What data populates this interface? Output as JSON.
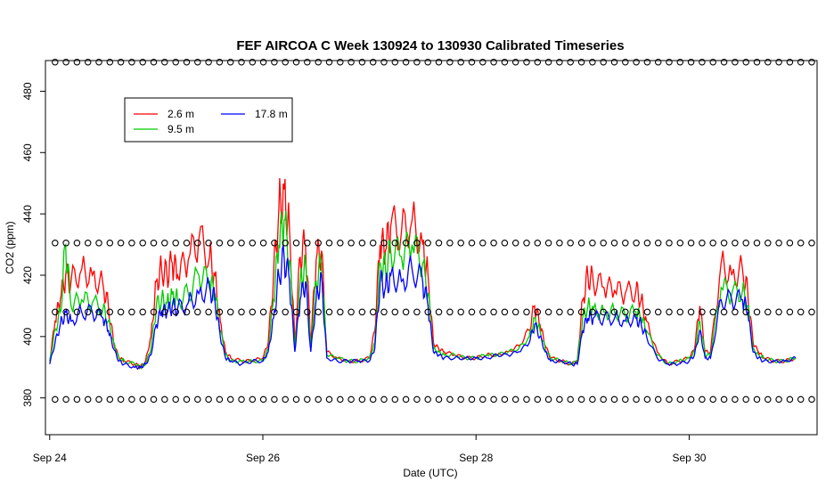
{
  "chart_data": {
    "type": "line",
    "title": "FEF AIRCOA C  Week 130924 to 130930  Calibrated Timeseries",
    "xlabel": "Date (UTC)",
    "ylabel": "CO2 (ppm)",
    "x_unit": "days",
    "xlim": [
      23.96,
      31.2
    ],
    "ylim": [
      368,
      490
    ],
    "x_ticks": [
      {
        "value": 24,
        "label": "Sep 24"
      },
      {
        "value": 26,
        "label": "Sep 26"
      },
      {
        "value": 28,
        "label": "Sep 28"
      },
      {
        "value": 30,
        "label": "Sep 30"
      }
    ],
    "y_ticks": [
      {
        "value": 380,
        "label": "380"
      },
      {
        "value": 400,
        "label": "400"
      },
      {
        "value": 420,
        "label": "420"
      },
      {
        "value": 440,
        "label": "440"
      },
      {
        "value": 460,
        "label": "460"
      },
      {
        "value": 480,
        "label": "480"
      }
    ],
    "legend_position": "top-left",
    "series": [
      {
        "name": "2.6 m",
        "color": "#ff0000",
        "x": [
          24.0,
          24.05,
          24.1,
          24.15,
          24.2,
          24.3,
          24.4,
          24.5,
          24.55,
          24.6,
          24.65,
          24.7,
          24.8,
          24.85,
          24.9,
          24.95,
          25.0,
          25.05,
          25.1,
          25.15,
          25.2,
          25.3,
          25.4,
          25.5,
          25.55,
          25.6,
          25.65,
          25.7,
          25.8,
          25.9,
          26.0,
          26.05,
          26.1,
          26.15,
          26.2,
          26.25,
          26.3,
          26.35,
          26.4,
          26.45,
          26.5,
          26.55,
          26.6,
          26.7,
          26.8,
          26.9,
          27.0,
          27.05,
          27.1,
          27.15,
          27.2,
          27.3,
          27.4,
          27.5,
          27.55,
          27.6,
          27.65,
          27.7,
          27.8,
          27.9,
          28.0,
          28.1,
          28.2,
          28.3,
          28.4,
          28.5,
          28.55,
          28.6,
          28.65,
          28.7,
          28.8,
          28.9,
          28.95,
          29.0,
          29.05,
          29.1,
          29.2,
          29.3,
          29.4,
          29.5,
          29.55,
          29.6,
          29.7,
          29.8,
          29.9,
          30.0,
          30.05,
          30.1,
          30.15,
          30.2,
          30.3,
          30.4,
          30.5,
          30.55,
          30.6,
          30.65,
          30.7,
          30.8,
          30.9,
          31.0
        ],
        "values": [
          392,
          405,
          412,
          420,
          418,
          422,
          420,
          417,
          410,
          398,
          393,
          392,
          391,
          390,
          392,
          400,
          418,
          422,
          420,
          424,
          420,
          425,
          432,
          426,
          420,
          405,
          395,
          393,
          392,
          392,
          393,
          398,
          420,
          442,
          448,
          435,
          398,
          426,
          430,
          398,
          425,
          428,
          395,
          393,
          392,
          392,
          393,
          402,
          430,
          428,
          436,
          434,
          438,
          430,
          420,
          398,
          396,
          395,
          394,
          393,
          393,
          394,
          394,
          395,
          397,
          402,
          410,
          404,
          397,
          393,
          392,
          391,
          392,
          412,
          420,
          418,
          416,
          415,
          414,
          415,
          412,
          405,
          395,
          391,
          392,
          393,
          396,
          410,
          395,
          395,
          424,
          420,
          422,
          414,
          398,
          395,
          393,
          392,
          392,
          393
        ]
      },
      {
        "name": "9.5 m",
        "color": "#00cc00",
        "x": [
          24.0,
          24.05,
          24.1,
          24.15,
          24.2,
          24.3,
          24.4,
          24.5,
          24.55,
          24.6,
          24.65,
          24.7,
          24.8,
          24.85,
          24.9,
          24.95,
          25.0,
          25.05,
          25.1,
          25.15,
          25.2,
          25.3,
          25.4,
          25.5,
          25.55,
          25.6,
          25.65,
          25.7,
          25.8,
          25.9,
          26.0,
          26.05,
          26.1,
          26.15,
          26.2,
          26.25,
          26.3,
          26.35,
          26.4,
          26.45,
          26.5,
          26.55,
          26.6,
          26.7,
          26.8,
          26.9,
          27.0,
          27.05,
          27.1,
          27.15,
          27.2,
          27.3,
          27.4,
          27.5,
          27.55,
          27.6,
          27.65,
          27.7,
          27.8,
          27.9,
          28.0,
          28.1,
          28.2,
          28.3,
          28.4,
          28.5,
          28.55,
          28.6,
          28.65,
          28.7,
          28.8,
          28.9,
          28.95,
          29.0,
          29.05,
          29.1,
          29.2,
          29.3,
          29.4,
          29.5,
          29.55,
          29.6,
          29.7,
          29.8,
          29.9,
          30.0,
          30.05,
          30.1,
          30.15,
          30.2,
          30.3,
          30.4,
          30.5,
          30.55,
          30.6,
          30.65,
          30.7,
          30.8,
          30.9,
          31.0
        ],
        "values": [
          392,
          402,
          408,
          430,
          410,
          412,
          411,
          409,
          405,
          398,
          393,
          392,
          391,
          390,
          391,
          396,
          410,
          412,
          411,
          414,
          412,
          414,
          420,
          418,
          414,
          402,
          394,
          392,
          392,
          392,
          392,
          396,
          412,
          430,
          438,
          425,
          396,
          418,
          424,
          396,
          418,
          424,
          394,
          393,
          392,
          392,
          393,
          398,
          424,
          422,
          428,
          426,
          430,
          424,
          414,
          396,
          395,
          394,
          394,
          393,
          393,
          394,
          394,
          395,
          396,
          400,
          406,
          402,
          396,
          393,
          392,
          391,
          392,
          406,
          410,
          409,
          408,
          408,
          407,
          408,
          406,
          402,
          394,
          391,
          392,
          393,
          395,
          405,
          394,
          394,
          416,
          414,
          415,
          410,
          396,
          394,
          393,
          392,
          392,
          393
        ]
      },
      {
        "name": "17.8 m",
        "color": "#0000ff",
        "x": [
          24.0,
          24.05,
          24.1,
          24.15,
          24.2,
          24.3,
          24.4,
          24.5,
          24.55,
          24.6,
          24.65,
          24.7,
          24.8,
          24.85,
          24.9,
          24.95,
          25.0,
          25.05,
          25.1,
          25.15,
          25.2,
          25.3,
          25.4,
          25.5,
          25.55,
          25.6,
          25.65,
          25.7,
          25.8,
          25.9,
          26.0,
          26.05,
          26.1,
          26.15,
          26.2,
          26.25,
          26.3,
          26.35,
          26.4,
          26.45,
          26.5,
          26.55,
          26.6,
          26.7,
          26.8,
          26.9,
          27.0,
          27.05,
          27.1,
          27.15,
          27.2,
          27.3,
          27.4,
          27.5,
          27.55,
          27.6,
          27.65,
          27.7,
          27.8,
          27.9,
          28.0,
          28.1,
          28.2,
          28.3,
          28.4,
          28.5,
          28.55,
          28.6,
          28.65,
          28.7,
          28.8,
          28.9,
          28.95,
          29.0,
          29.05,
          29.1,
          29.2,
          29.3,
          29.4,
          29.5,
          29.55,
          29.6,
          29.7,
          29.8,
          29.9,
          30.0,
          30.05,
          30.1,
          30.15,
          30.2,
          30.3,
          30.4,
          30.5,
          30.55,
          30.6,
          30.65,
          30.7,
          30.8,
          30.9,
          31.0
        ],
        "values": [
          391,
          398,
          404,
          408,
          405,
          408,
          408,
          406,
          402,
          396,
          392,
          391,
          390,
          390,
          391,
          394,
          404,
          408,
          408,
          410,
          409,
          411,
          414,
          416,
          412,
          400,
          393,
          392,
          391,
          392,
          392,
          395,
          406,
          420,
          426,
          418,
          395,
          412,
          418,
          395,
          412,
          420,
          393,
          392,
          392,
          392,
          392,
          396,
          418,
          416,
          420,
          418,
          422,
          418,
          410,
          395,
          394,
          393,
          393,
          393,
          393,
          393,
          394,
          394,
          395,
          398,
          404,
          400,
          395,
          392,
          392,
          391,
          391,
          402,
          406,
          406,
          406,
          406,
          405,
          406,
          404,
          400,
          393,
          391,
          391,
          392,
          394,
          402,
          393,
          393,
          412,
          412,
          412,
          408,
          395,
          393,
          392,
          392,
          392,
          393
        ]
      }
    ],
    "markers": [
      {
        "name": "flag-489",
        "value": 489.5,
        "x_start": 24.05,
        "x_end": 31.15,
        "count": 70
      },
      {
        "name": "flag-430",
        "value": 430.5,
        "x_start": 24.05,
        "x_end": 31.15,
        "count": 70
      },
      {
        "name": "flag-408",
        "value": 408.0,
        "x_start": 24.05,
        "x_end": 31.15,
        "count": 70
      },
      {
        "name": "flag-380",
        "value": 379.5,
        "x_start": 24.05,
        "x_end": 31.15,
        "count": 70
      }
    ]
  }
}
